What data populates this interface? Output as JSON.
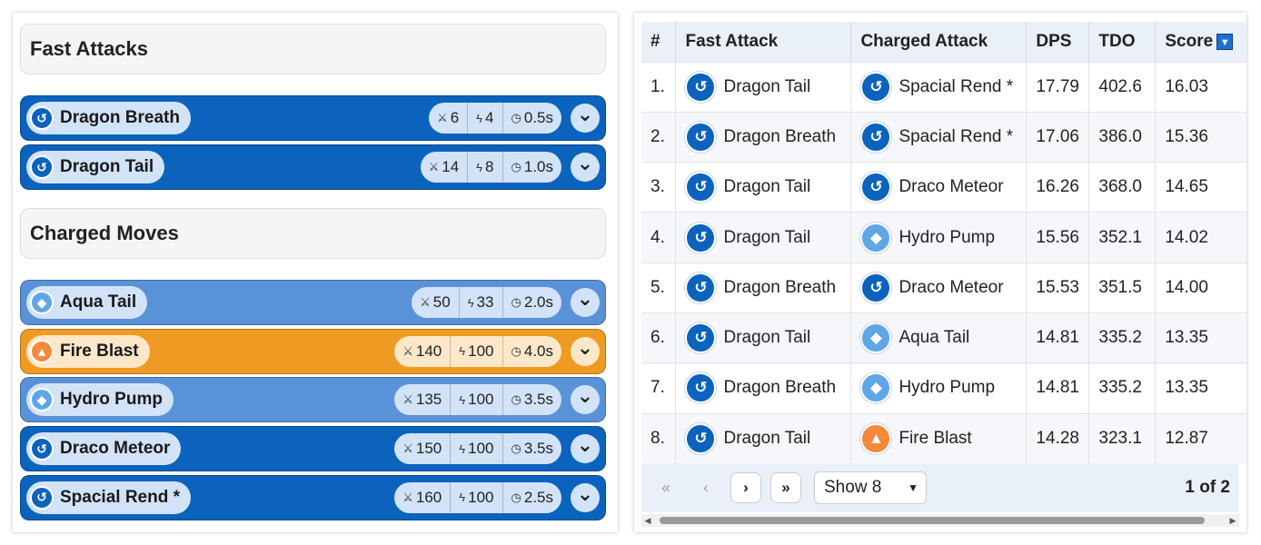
{
  "fast_attacks": {
    "title": "Fast Attacks",
    "moves": [
      {
        "name": "Dragon Breath",
        "type": "dragon",
        "icon": "dragon-icon",
        "damage": "6",
        "energy": "4",
        "time": "0.5s"
      },
      {
        "name": "Dragon Tail",
        "type": "dragon",
        "icon": "dragon-icon",
        "damage": "14",
        "energy": "8",
        "time": "1.0s"
      }
    ]
  },
  "charged_moves": {
    "title": "Charged Moves",
    "moves": [
      {
        "name": "Aqua Tail",
        "type": "water",
        "icon": "water-icon",
        "damage": "50",
        "energy": "33",
        "time": "2.0s"
      },
      {
        "name": "Fire Blast",
        "type": "fire",
        "icon": "fire-icon",
        "damage": "140",
        "energy": "100",
        "time": "4.0s"
      },
      {
        "name": "Hydro Pump",
        "type": "water",
        "icon": "water-icon",
        "damage": "135",
        "energy": "100",
        "time": "3.5s"
      },
      {
        "name": "Draco Meteor",
        "type": "dragon",
        "icon": "dragon-icon",
        "damage": "150",
        "energy": "100",
        "time": "3.5s"
      },
      {
        "name": "Spacial Rend *",
        "type": "dragon",
        "icon": "dragon-icon",
        "damage": "160",
        "energy": "100",
        "time": "2.5s"
      }
    ]
  },
  "table": {
    "headers": {
      "rank": "#",
      "fast": "Fast Attack",
      "charged": "Charged Attack",
      "dps": "DPS",
      "tdo": "TDO",
      "score": "Score"
    },
    "rows": [
      {
        "rank": "1.",
        "fast": "Dragon Tail",
        "fast_type": "dragon",
        "charged": "Spacial Rend *",
        "charged_type": "dragon",
        "dps": "17.79",
        "tdo": "402.6",
        "score": "16.03"
      },
      {
        "rank": "2.",
        "fast": "Dragon Breath",
        "fast_type": "dragon",
        "charged": "Spacial Rend *",
        "charged_type": "dragon",
        "dps": "17.06",
        "tdo": "386.0",
        "score": "15.36"
      },
      {
        "rank": "3.",
        "fast": "Dragon Tail",
        "fast_type": "dragon",
        "charged": "Draco Meteor",
        "charged_type": "dragon",
        "dps": "16.26",
        "tdo": "368.0",
        "score": "14.65"
      },
      {
        "rank": "4.",
        "fast": "Dragon Tail",
        "fast_type": "dragon",
        "charged": "Hydro Pump",
        "charged_type": "water",
        "dps": "15.56",
        "tdo": "352.1",
        "score": "14.02"
      },
      {
        "rank": "5.",
        "fast": "Dragon Breath",
        "fast_type": "dragon",
        "charged": "Draco Meteor",
        "charged_type": "dragon",
        "dps": "15.53",
        "tdo": "351.5",
        "score": "14.00"
      },
      {
        "rank": "6.",
        "fast": "Dragon Tail",
        "fast_type": "dragon",
        "charged": "Aqua Tail",
        "charged_type": "water",
        "dps": "14.81",
        "tdo": "335.2",
        "score": "13.35"
      },
      {
        "rank": "7.",
        "fast": "Dragon Breath",
        "fast_type": "dragon",
        "charged": "Hydro Pump",
        "charged_type": "water",
        "dps": "14.81",
        "tdo": "335.2",
        "score": "13.35"
      },
      {
        "rank": "8.",
        "fast": "Dragon Tail",
        "fast_type": "dragon",
        "charged": "Fire Blast",
        "charged_type": "fire",
        "dps": "14.28",
        "tdo": "323.1",
        "score": "12.87"
      }
    ]
  },
  "pagination": {
    "show_label": "Show 8",
    "page_info": "1 of 2"
  },
  "colors": {
    "dragon": "#0b63be",
    "water": "#5a92d8",
    "fire": "#ef9a23"
  }
}
